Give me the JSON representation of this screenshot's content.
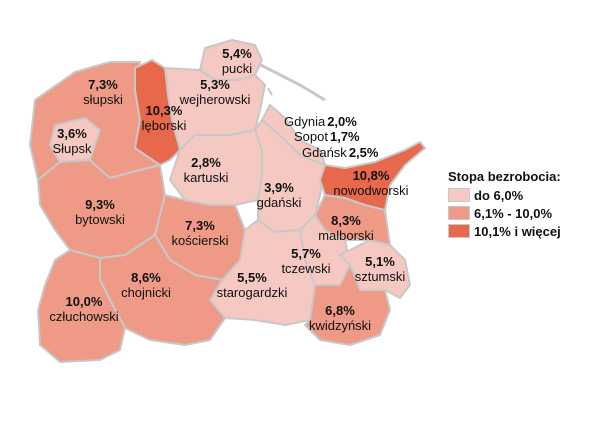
{
  "legend": {
    "title": "Stopa bezrobocia:",
    "items": [
      {
        "label": "do 6,0%",
        "color": "#f5c9c2"
      },
      {
        "label": "6,1% - 10,0%",
        "color": "#ee9a86"
      },
      {
        "label": "10,1% i więcej",
        "color": "#e8684c"
      }
    ]
  },
  "colors": {
    "low": "#f5c9c2",
    "mid": "#ee9a86",
    "high": "#e8684c",
    "border": "#c8c8c8",
    "sea_lines": "#c8c8c8"
  },
  "regions": {
    "pucki": {
      "value": "5,4%",
      "name": "pucki"
    },
    "wejherowski": {
      "value": "5,3%",
      "name": "wejherowski"
    },
    "slupski": {
      "value": "7,3%",
      "name": "słupski"
    },
    "leborski": {
      "value": "10,3%",
      "name": "lęborski"
    },
    "slupsk": {
      "value": "3,6%",
      "name": "Słupsk"
    },
    "kartuski": {
      "value": "2,8%",
      "name": "kartuski"
    },
    "gdanski": {
      "value": "3,9%",
      "name": "gdański"
    },
    "nowodworski": {
      "value": "10,8%",
      "name": "nowodworski"
    },
    "malborski": {
      "value": "8,3%",
      "name": "malborski"
    },
    "bytowski": {
      "value": "9,3%",
      "name": "bytowski"
    },
    "koscierski": {
      "value": "7,3%",
      "name": "kościerski"
    },
    "tczewski": {
      "value": "5,7%",
      "name": "tczewski"
    },
    "sztumski": {
      "value": "5,1%",
      "name": "sztumski"
    },
    "chojnicki": {
      "value": "8,6%",
      "name": "chojnicki"
    },
    "starogardzki": {
      "value": "5,5%",
      "name": "starogardzki"
    },
    "czluchowski": {
      "value": "10,0%",
      "name": "człuchowski"
    },
    "kwidzynski": {
      "value": "6,8%",
      "name": "kwidzyński"
    }
  },
  "cities": {
    "gdynia": {
      "name": "Gdynia",
      "value": "2,0%"
    },
    "sopot": {
      "name": "Sopot",
      "value": "1,7%"
    },
    "gdansk": {
      "name": "Gdańsk",
      "value": "2,5%"
    }
  }
}
